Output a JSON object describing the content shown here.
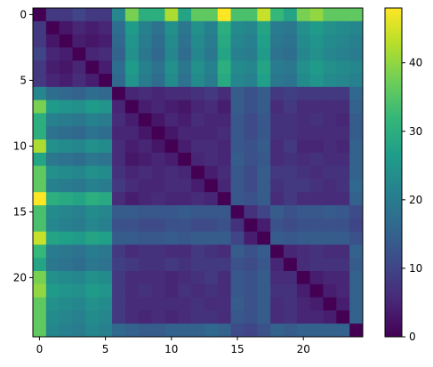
{
  "chart_data": {
    "type": "heatmap",
    "title": "",
    "xlabel": "",
    "ylabel": "",
    "rows": 25,
    "cols": 25,
    "x_ticks": [
      0,
      5,
      10,
      15,
      20
    ],
    "y_ticks": [
      0,
      5,
      10,
      15,
      20
    ],
    "colorbar": {
      "range": [
        0,
        48
      ],
      "ticks": [
        0,
        10,
        20,
        30,
        40
      ],
      "colormap": "viridis"
    },
    "values": [
      [
        0,
        8,
        8,
        10,
        8,
        8,
        22,
        38,
        30,
        30,
        42,
        28,
        36,
        36,
        48,
        34,
        34,
        44,
        32,
        28,
        38,
        40,
        36,
        36,
        36
      ],
      [
        8,
        0,
        3,
        5,
        4,
        5,
        17,
        26,
        21,
        18,
        24,
        19,
        24,
        21,
        30,
        23,
        22,
        28,
        20,
        19,
        24,
        26,
        24,
        23,
        22
      ],
      [
        8,
        3,
        0,
        4,
        3,
        4,
        16,
        25,
        20,
        17,
        23,
        18,
        23,
        20,
        29,
        22,
        21,
        27,
        19,
        18,
        23,
        25,
        23,
        22,
        21
      ],
      [
        10,
        5,
        4,
        0,
        5,
        6,
        15,
        24,
        19,
        16,
        22,
        17,
        22,
        19,
        28,
        21,
        20,
        26,
        18,
        17,
        22,
        24,
        22,
        21,
        20
      ],
      [
        8,
        4,
        3,
        5,
        0,
        4,
        17,
        26,
        21,
        18,
        24,
        19,
        24,
        21,
        30,
        23,
        22,
        28,
        20,
        19,
        24,
        26,
        24,
        23,
        22
      ],
      [
        8,
        5,
        4,
        6,
        4,
        0,
        16,
        25,
        20,
        17,
        23,
        18,
        23,
        20,
        29,
        22,
        21,
        27,
        19,
        18,
        23,
        25,
        23,
        22,
        21
      ],
      [
        22,
        17,
        16,
        15,
        17,
        16,
        0,
        5,
        6,
        5,
        6,
        6,
        7,
        8,
        6,
        14,
        12,
        14,
        8,
        9,
        8,
        8,
        8,
        8,
        16
      ],
      [
        38,
        26,
        25,
        24,
        26,
        25,
        5,
        0,
        4,
        5,
        4,
        3,
        5,
        6,
        4,
        14,
        12,
        14,
        6,
        8,
        6,
        6,
        6,
        6,
        15
      ],
      [
        30,
        21,
        20,
        19,
        21,
        20,
        6,
        4,
        0,
        3,
        5,
        4,
        6,
        5,
        5,
        13,
        11,
        13,
        7,
        7,
        6,
        7,
        6,
        5,
        14
      ],
      [
        30,
        18,
        17,
        16,
        18,
        17,
        5,
        5,
        3,
        0,
        3,
        5,
        5,
        5,
        6,
        13,
        11,
        13,
        7,
        7,
        6,
        6,
        6,
        6,
        14
      ],
      [
        42,
        24,
        23,
        22,
        24,
        23,
        6,
        4,
        5,
        3,
        0,
        4,
        6,
        6,
        5,
        13,
        12,
        14,
        6,
        8,
        5,
        5,
        6,
        5,
        15
      ],
      [
        28,
        19,
        18,
        17,
        19,
        18,
        6,
        3,
        4,
        5,
        4,
        0,
        5,
        6,
        5,
        14,
        12,
        13,
        6,
        7,
        6,
        7,
        6,
        6,
        15
      ],
      [
        36,
        24,
        23,
        22,
        24,
        23,
        7,
        5,
        6,
        5,
        6,
        5,
        0,
        4,
        6,
        13,
        11,
        14,
        8,
        8,
        7,
        6,
        7,
        7,
        15
      ],
      [
        36,
        21,
        20,
        19,
        21,
        20,
        8,
        6,
        5,
        5,
        6,
        6,
        4,
        0,
        5,
        13,
        11,
        14,
        7,
        8,
        8,
        7,
        6,
        7,
        16
      ],
      [
        48,
        30,
        29,
        28,
        30,
        29,
        6,
        4,
        5,
        6,
        5,
        5,
        6,
        5,
        0,
        13,
        12,
        14,
        6,
        8,
        6,
        6,
        6,
        6,
        15
      ],
      [
        34,
        23,
        22,
        21,
        23,
        22,
        14,
        14,
        13,
        13,
        13,
        14,
        13,
        13,
        13,
        0,
        7,
        10,
        14,
        12,
        13,
        13,
        14,
        13,
        11
      ],
      [
        34,
        22,
        21,
        20,
        22,
        21,
        12,
        12,
        11,
        11,
        12,
        12,
        11,
        11,
        12,
        7,
        0,
        4,
        12,
        11,
        12,
        12,
        12,
        12,
        10
      ],
      [
        44,
        28,
        27,
        26,
        28,
        27,
        14,
        14,
        13,
        13,
        14,
        13,
        14,
        14,
        14,
        10,
        4,
        0,
        14,
        13,
        14,
        14,
        14,
        14,
        12
      ],
      [
        32,
        20,
        19,
        18,
        20,
        19,
        8,
        6,
        7,
        7,
        6,
        6,
        8,
        7,
        6,
        14,
        12,
        14,
        0,
        5,
        6,
        7,
        6,
        6,
        15
      ],
      [
        28,
        19,
        18,
        17,
        19,
        18,
        9,
        8,
        7,
        7,
        8,
        7,
        8,
        8,
        8,
        12,
        11,
        13,
        5,
        0,
        6,
        7,
        7,
        7,
        14
      ],
      [
        38,
        24,
        23,
        22,
        24,
        23,
        8,
        6,
        6,
        6,
        5,
        6,
        7,
        8,
        6,
        13,
        12,
        14,
        6,
        6,
        0,
        4,
        5,
        5,
        15
      ],
      [
        40,
        26,
        25,
        24,
        26,
        25,
        8,
        6,
        7,
        6,
        5,
        7,
        6,
        7,
        6,
        13,
        12,
        14,
        7,
        7,
        4,
        0,
        4,
        5,
        15
      ],
      [
        36,
        24,
        23,
        22,
        24,
        23,
        8,
        6,
        6,
        6,
        6,
        6,
        7,
        6,
        6,
        14,
        12,
        14,
        6,
        7,
        5,
        4,
        0,
        4,
        15
      ],
      [
        36,
        23,
        22,
        21,
        23,
        22,
        8,
        6,
        5,
        6,
        5,
        6,
        7,
        7,
        6,
        13,
        12,
        14,
        6,
        7,
        5,
        5,
        4,
        0,
        15
      ],
      [
        36,
        22,
        21,
        20,
        22,
        21,
        16,
        15,
        14,
        14,
        15,
        15,
        15,
        16,
        15,
        11,
        10,
        12,
        15,
        14,
        15,
        15,
        15,
        15,
        0
      ]
    ]
  }
}
